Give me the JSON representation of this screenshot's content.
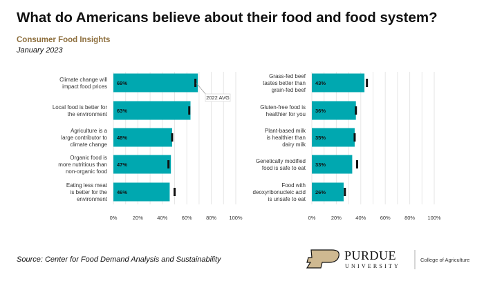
{
  "title": "What do Americans believe about their food and food system?",
  "subtitle": "Consumer Food Insights",
  "date": "January 2023",
  "source": "Source:  Center for Food Demand Analysis and Sustainability",
  "logo": {
    "name": "PURDUE",
    "sub": "UNIVERSITY",
    "college": "College of Agriculture"
  },
  "colors": {
    "bar": "#00a8b0",
    "marker": "#111111",
    "grid": "#e6e6e6",
    "subtitle": "#8e6f3e",
    "logo_gold": "#cfb991"
  },
  "chart_data": [
    {
      "type": "bar",
      "orientation": "horizontal",
      "xlim": [
        0,
        100
      ],
      "ticks": [
        "0%",
        "20%",
        "40%",
        "60%",
        "80%",
        "100%"
      ],
      "categories": [
        [
          "Climate change will",
          "impact food prices"
        ],
        [
          "Local food is better for",
          "the environment"
        ],
        [
          "Agriculture is a",
          "large contributor to",
          "climate change"
        ],
        [
          "Organic food is",
          "more nutritious than",
          "non-organic food"
        ],
        [
          "Eating less meat",
          "is better for the",
          "environment"
        ]
      ],
      "values": [
        69,
        63,
        48,
        47,
        46
      ],
      "value_labels": [
        "69%",
        "63%",
        "48%",
        "47%",
        "46%"
      ],
      "avg_2022": [
        67,
        62,
        48,
        45,
        50
      ],
      "annotation": "2022 AVG"
    },
    {
      "type": "bar",
      "orientation": "horizontal",
      "xlim": [
        0,
        100
      ],
      "ticks": [
        "0%",
        "20%",
        "40%",
        "60%",
        "80%",
        "100%"
      ],
      "categories": [
        [
          "Grass-fed beef",
          "tastes better than",
          "grain-fed beef"
        ],
        [
          "Gluten-free food is",
          "healthier for you"
        ],
        [
          "Plant-based milk",
          "is healthier than",
          "dairy milk"
        ],
        [
          "Genetically modified",
          "food is safe to eat"
        ],
        [
          "Food with",
          "deoxyribonucleic acid",
          "is unsafe to eat"
        ]
      ],
      "values": [
        43,
        36,
        35,
        33,
        26
      ],
      "value_labels": [
        "43%",
        "36%",
        "35%",
        "33%",
        "26%"
      ],
      "avg_2022": [
        45,
        36,
        35,
        37,
        27
      ]
    }
  ]
}
